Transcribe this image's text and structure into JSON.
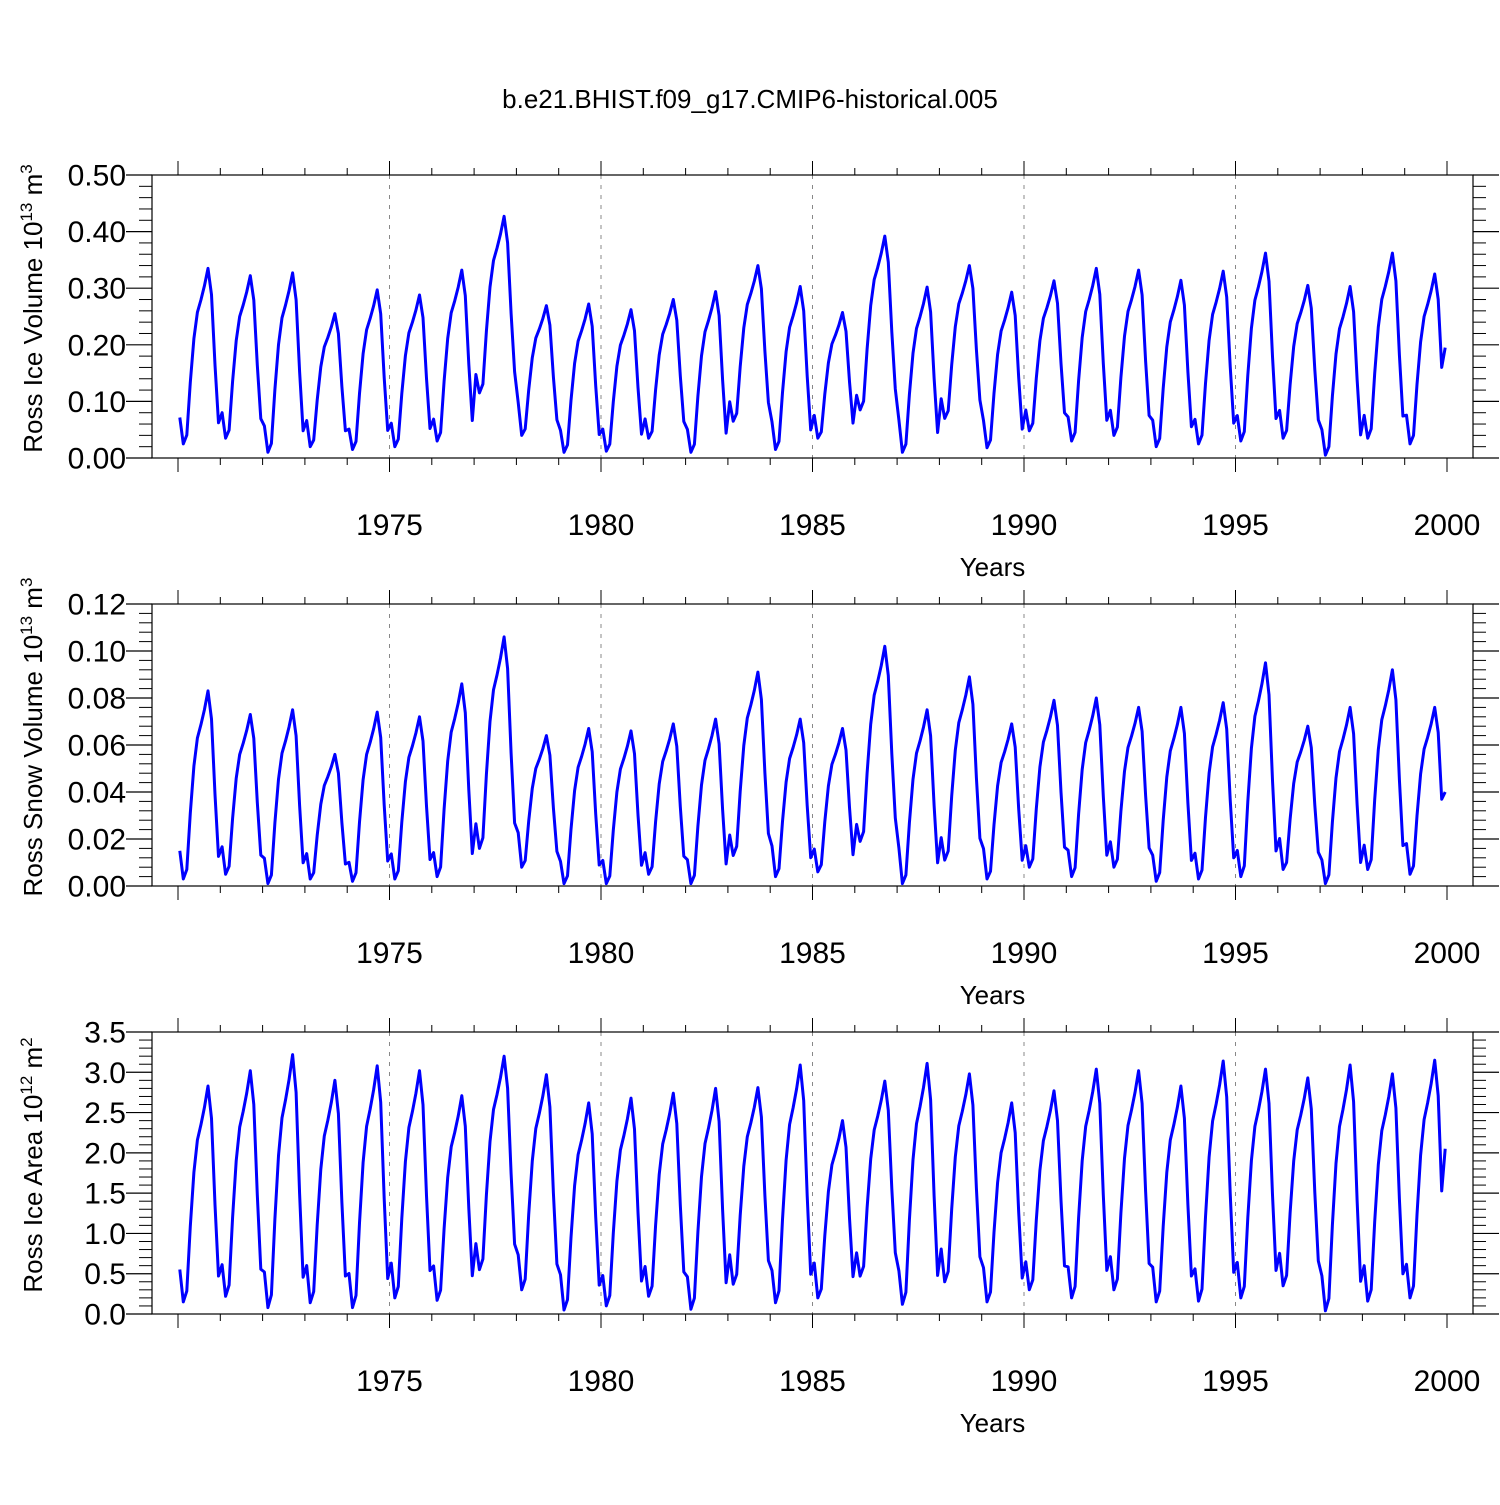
{
  "title": "b.e21.BHIST.f09_g17.CMIP6-historical.005",
  "colors": {
    "series": "#0000ff",
    "axis": "#000000",
    "grid": "#888888"
  },
  "chart_data": [
    {
      "type": "line",
      "ylabel": "Ross Ice Volume 10",
      "ylabel_sup1": "13",
      "ylabel_unit": " m",
      "ylabel_sup2": "3",
      "xlabel": "Years",
      "xlim": [
        1970,
        2000
      ],
      "ylim": [
        0.0,
        0.5
      ],
      "yticks": [
        0.0,
        0.1,
        0.2,
        0.3,
        0.4,
        0.5
      ],
      "ytick_labels": [
        "0.00",
        "0.10",
        "0.20",
        "0.30",
        "0.40",
        "0.50"
      ],
      "xticks": [
        1975,
        1980,
        1985,
        1990,
        1995,
        2000
      ],
      "xtick_labels": [
        "1975",
        "1980",
        "1985",
        "1990",
        "1995",
        "2000"
      ],
      "grid_x": [
        1975,
        1980,
        1985,
        1990,
        1995
      ],
      "series": [
        {
          "name": "Ross Ice Volume",
          "annual_max": [
            0.335,
            0.322,
            0.327,
            0.255,
            0.297,
            0.288,
            0.332,
            0.427,
            0.269,
            0.272,
            0.262,
            0.28,
            0.294,
            0.34,
            0.303,
            0.257,
            0.392,
            0.302,
            0.34,
            0.293,
            0.313,
            0.335,
            0.332,
            0.314,
            0.33,
            0.362,
            0.305,
            0.303,
            0.362,
            0.325
          ],
          "annual_min": [
            0.025,
            0.035,
            0.01,
            0.02,
            0.015,
            0.02,
            0.03,
            0.115,
            0.04,
            0.01,
            0.012,
            0.035,
            0.01,
            0.065,
            0.015,
            0.035,
            0.085,
            0.01,
            0.07,
            0.018,
            0.048,
            0.03,
            0.04,
            0.02,
            0.025,
            0.03,
            0.035,
            0.005,
            0.035,
            0.025
          ],
          "end_value": 0.195
        }
      ]
    },
    {
      "type": "line",
      "ylabel": "Ross Snow Volume 10",
      "ylabel_sup1": "13",
      "ylabel_unit": " m",
      "ylabel_sup2": "3",
      "xlabel": "Years",
      "xlim": [
        1970,
        2000
      ],
      "ylim": [
        0.0,
        0.12
      ],
      "yticks": [
        0.0,
        0.02,
        0.04,
        0.06,
        0.08,
        0.1,
        0.12
      ],
      "ytick_labels": [
        "0.00",
        "0.02",
        "0.04",
        "0.06",
        "0.08",
        "0.10",
        "0.12"
      ],
      "xticks": [
        1975,
        1980,
        1985,
        1990,
        1995,
        2000
      ],
      "xtick_labels": [
        "1975",
        "1980",
        "1985",
        "1990",
        "1995",
        "2000"
      ],
      "grid_x": [
        1975,
        1980,
        1985,
        1990,
        1995
      ],
      "series": [
        {
          "name": "Ross Snow Volume",
          "annual_max": [
            0.083,
            0.073,
            0.075,
            0.056,
            0.074,
            0.072,
            0.086,
            0.106,
            0.064,
            0.067,
            0.066,
            0.069,
            0.071,
            0.091,
            0.071,
            0.067,
            0.102,
            0.075,
            0.089,
            0.069,
            0.079,
            0.08,
            0.076,
            0.076,
            0.078,
            0.095,
            0.068,
            0.076,
            0.092,
            0.076
          ],
          "annual_min": [
            0.003,
            0.005,
            0.001,
            0.003,
            0.002,
            0.003,
            0.004,
            0.016,
            0.008,
            0.001,
            0.001,
            0.005,
            0.001,
            0.013,
            0.004,
            0.006,
            0.019,
            0.001,
            0.011,
            0.003,
            0.008,
            0.004,
            0.008,
            0.002,
            0.003,
            0.004,
            0.007,
            0.001,
            0.007,
            0.005
          ],
          "end_value": 0.04
        }
      ]
    },
    {
      "type": "line",
      "ylabel": "Ross Ice Area 10",
      "ylabel_sup1": "12",
      "ylabel_unit": " m",
      "ylabel_sup2": "2",
      "xlabel": "Years",
      "xlim": [
        1970,
        2000
      ],
      "ylim": [
        0.0,
        3.5
      ],
      "yticks": [
        0.0,
        0.5,
        1.0,
        1.5,
        2.0,
        2.5,
        3.0,
        3.5
      ],
      "ytick_labels": [
        "0.0",
        "0.5",
        "1.0",
        "1.5",
        "2.0",
        "2.5",
        "3.0",
        "3.5"
      ],
      "xticks": [
        1975,
        1980,
        1985,
        1990,
        1995,
        2000
      ],
      "xtick_labels": [
        "1975",
        "1980",
        "1985",
        "1990",
        "1995",
        "2000"
      ],
      "grid_x": [
        1975,
        1980,
        1985,
        1990,
        1995
      ],
      "series": [
        {
          "name": "Ross Ice Area",
          "annual_max": [
            2.83,
            3.02,
            3.22,
            2.9,
            3.08,
            3.02,
            2.71,
            3.2,
            2.97,
            2.62,
            2.68,
            2.74,
            2.8,
            2.81,
            3.09,
            2.4,
            2.89,
            3.11,
            2.98,
            2.62,
            2.77,
            3.04,
            3.02,
            2.83,
            3.14,
            3.04,
            2.93,
            3.09,
            2.98,
            3.15
          ],
          "annual_min": [
            0.15,
            0.22,
            0.08,
            0.14,
            0.08,
            0.2,
            0.17,
            0.55,
            0.3,
            0.05,
            0.1,
            0.22,
            0.06,
            0.37,
            0.14,
            0.2,
            0.47,
            0.12,
            0.4,
            0.15,
            0.3,
            0.2,
            0.3,
            0.15,
            0.16,
            0.2,
            0.35,
            0.04,
            0.16,
            0.2
          ],
          "end_value": 2.05
        }
      ]
    }
  ]
}
